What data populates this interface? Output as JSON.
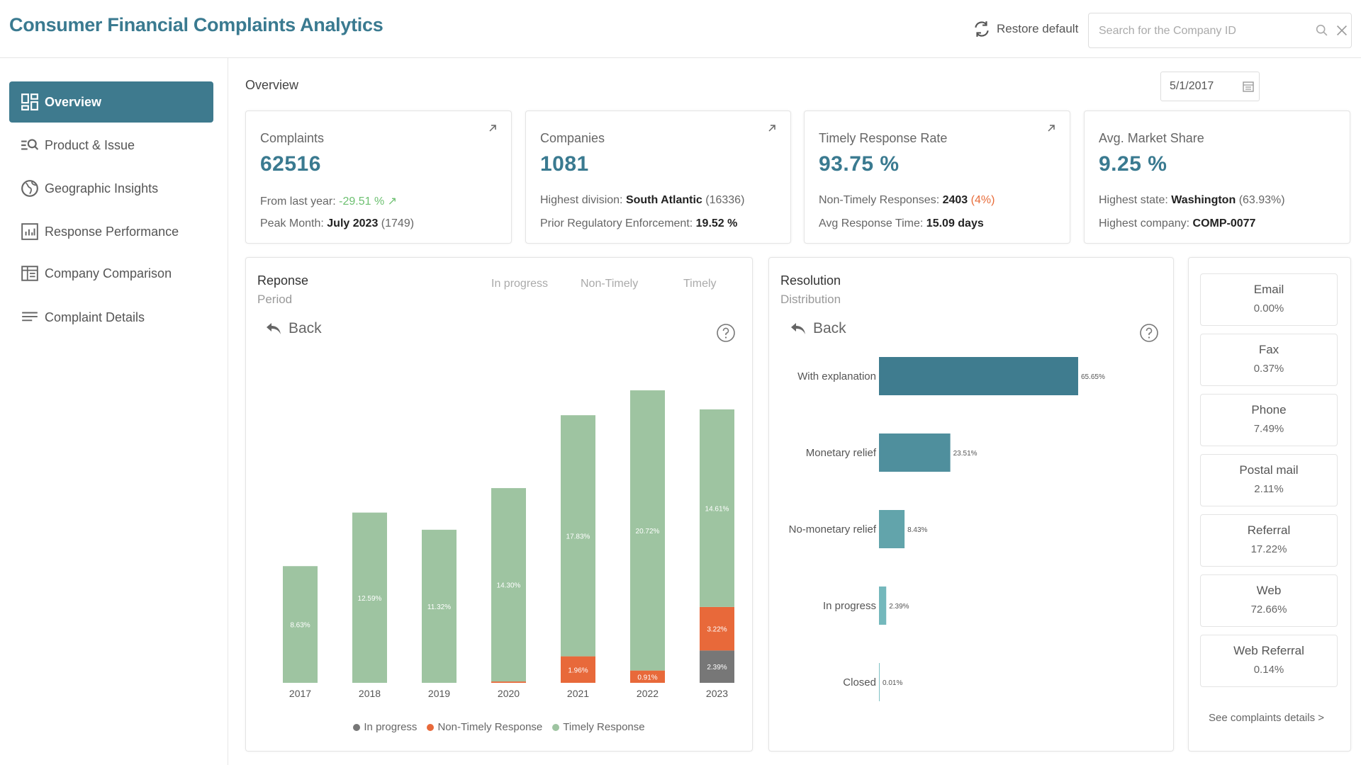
{
  "header": {
    "title": "Consumer Financial Complaints Analytics",
    "restore_label": "Restore default",
    "search_placeholder": "Search for the Company ID"
  },
  "sidebar": {
    "items": [
      {
        "label": "Overview",
        "icon": "dashboard-icon",
        "active": true
      },
      {
        "label": "Product & Issue",
        "icon": "search-list-icon",
        "active": false
      },
      {
        "label": "Geographic Insights",
        "icon": "globe-icon",
        "active": false
      },
      {
        "label": "Response Performance",
        "icon": "bar-chart-icon",
        "active": false
      },
      {
        "label": "Company Comparison",
        "icon": "table-icon",
        "active": false
      },
      {
        "label": "Complaint Details",
        "icon": "lines-icon",
        "active": false
      }
    ]
  },
  "main": {
    "section_label": "Overview",
    "date": "5/1/2017"
  },
  "kpis": [
    {
      "title": "Complaints",
      "value": "62516",
      "line1_label": "From last year:",
      "line1_value": "-29.51 %",
      "line2_label": "Peak Month:",
      "line2_value": "July 2023",
      "line2_extra": "(1749)"
    },
    {
      "title": "Companies",
      "value": "1081",
      "line1_label": "Highest division:",
      "line1_value": "South Atlantic",
      "line1_extra": "(16336)",
      "line2_label": "Prior Regulatory Enforcement:",
      "line2_value": "19.52 %"
    },
    {
      "title": "Timely Response Rate",
      "value": "93.75 %",
      "line1_label": "Non-Timely Responses:",
      "line1_value": "2403",
      "line1_extra": "(4%)",
      "line2_label": "Avg Response Time:",
      "line2_value": "15.09 days"
    },
    {
      "title": "Avg. Market Share",
      "value": "9.25 %",
      "line1_label": "Highest state:",
      "line1_value": "Washington",
      "line1_extra": "(63.93%)",
      "line2_label": "Highest company:",
      "line2_value": "COMP-0077"
    }
  ],
  "response_panel": {
    "title": "Reponse",
    "subtitle": "Period",
    "back_label": "Back",
    "top_legend": [
      "In progress",
      "Non-Timely",
      "Timely"
    ],
    "bottom_legend": [
      "In progress",
      "Non-Timely Response",
      "Timely Response"
    ]
  },
  "resolution_panel": {
    "title": "Resolution",
    "subtitle": "Distribution",
    "back_label": "Back"
  },
  "channels": [
    {
      "name": "Email",
      "value": "0.00%"
    },
    {
      "name": "Fax",
      "value": "0.37%"
    },
    {
      "name": "Phone",
      "value": "7.49%"
    },
    {
      "name": "Postal mail",
      "value": "2.11%"
    },
    {
      "name": "Referral",
      "value": "17.22%"
    },
    {
      "name": "Web",
      "value": "72.66%"
    },
    {
      "name": "Web Referral",
      "value": "0.14%"
    }
  ],
  "see_details_label": "See complaints details >",
  "colors": {
    "accent": "#3e7a8e",
    "timely": "#9ec4a1",
    "non_timely": "#e8693a",
    "in_progress": "#777777",
    "resolution_bar": "#3f7c8f"
  },
  "chart_data": [
    {
      "type": "bar",
      "stacked": true,
      "categories": [
        "2017",
        "2018",
        "2019",
        "2020",
        "2021",
        "2022",
        "2023"
      ],
      "series": [
        {
          "name": "In progress",
          "values": [
            0,
            0,
            0,
            0,
            0,
            0,
            2.39
          ]
        },
        {
          "name": "Non-Timely Response",
          "values": [
            0,
            0,
            0,
            0.1,
            1.96,
            0.91,
            3.22
          ]
        },
        {
          "name": "Timely Response",
          "values": [
            8.63,
            12.59,
            11.32,
            14.3,
            17.83,
            20.72,
            14.61
          ]
        }
      ],
      "data_labels": {
        "Timely Response": [
          "8.63%",
          "12.59%",
          "11.32%",
          "14.30%",
          "17.83%",
          "20.72%",
          "14.61%"
        ],
        "Non-Timely Response": [
          "",
          "",
          "",
          "",
          "1.96%",
          "0.91%",
          "3.22%"
        ],
        "In progress": [
          "",
          "",
          "",
          "",
          "",
          "",
          "2.39%"
        ]
      },
      "ylim": [
        0,
        22
      ],
      "legend": "bottom"
    },
    {
      "type": "bar",
      "orientation": "horizontal",
      "categories": [
        "With explanation",
        "Monetary relief",
        "No-monetary relief",
        "In progress",
        "Closed"
      ],
      "values": [
        65.65,
        23.51,
        8.43,
        2.39,
        0.01
      ],
      "labels": [
        "65.65%",
        "23.51%",
        "8.43%",
        "2.39%",
        "0.01%"
      ],
      "xlim": [
        0,
        100
      ],
      "colors": [
        "#3f7c8f",
        "#4f8f9d",
        "#62a4ab",
        "#74b8bc",
        "#7fc2c4"
      ]
    }
  ]
}
